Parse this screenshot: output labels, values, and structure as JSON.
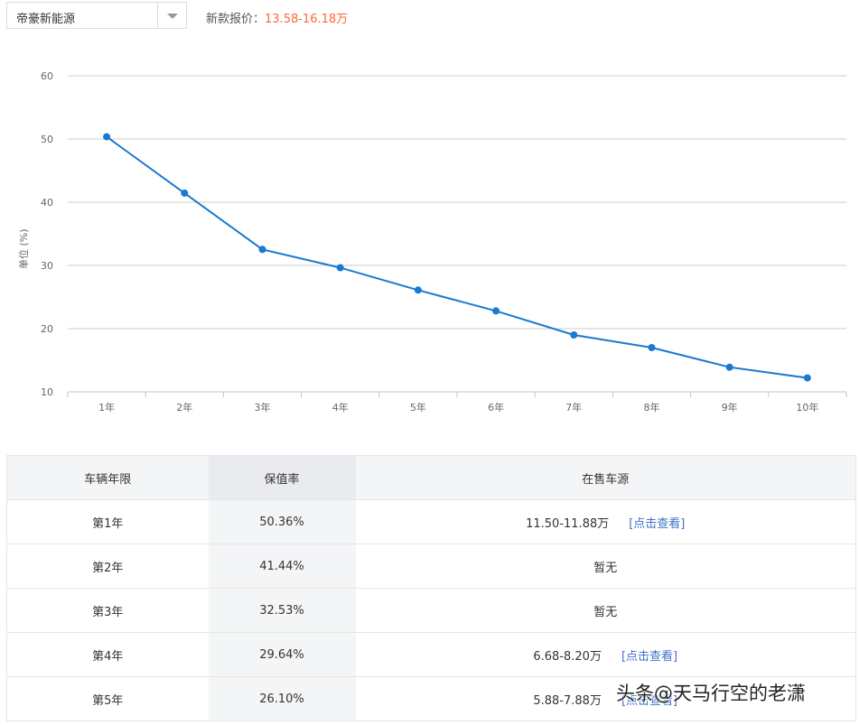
{
  "filter": {
    "selected_model": "帝豪新能源"
  },
  "price": {
    "label": "新款报价：",
    "value": "13.58-16.18万"
  },
  "chart_data": {
    "type": "line",
    "ylabel": "单位 (%)",
    "ylim": [
      10,
      60
    ],
    "yticks": [
      10,
      20,
      30,
      40,
      50,
      60
    ],
    "grid": true,
    "categories": [
      "1年",
      "2年",
      "3年",
      "4年",
      "5年",
      "6年",
      "7年",
      "8年",
      "9年",
      "10年"
    ],
    "series": [
      {
        "values": [
          50.36,
          41.44,
          32.53,
          29.64,
          26.1,
          22.8,
          19.0,
          17.0,
          13.9,
          12.2
        ]
      }
    ]
  },
  "table": {
    "headers": [
      "车辆年限",
      "保值率",
      "在售车源"
    ],
    "rows": [
      {
        "year": "第1年",
        "rate": "50.36%",
        "source": "11.50-11.88万",
        "link": "[点击查看]"
      },
      {
        "year": "第2年",
        "rate": "41.44%",
        "source": "暂无",
        "link": ""
      },
      {
        "year": "第3年",
        "rate": "32.53%",
        "source": "暂无",
        "link": ""
      },
      {
        "year": "第4年",
        "rate": "29.64%",
        "source": "6.68-8.20万",
        "link": "[点击查看]"
      },
      {
        "year": "第5年",
        "rate": "26.10%",
        "source": "5.88-7.88万",
        "link": "[点击查看]"
      }
    ]
  },
  "watermark": "头条@天马行空的老潇",
  "colors": {
    "line": "#1a79d0",
    "price": "#ff6633",
    "link": "#3d73c8"
  }
}
